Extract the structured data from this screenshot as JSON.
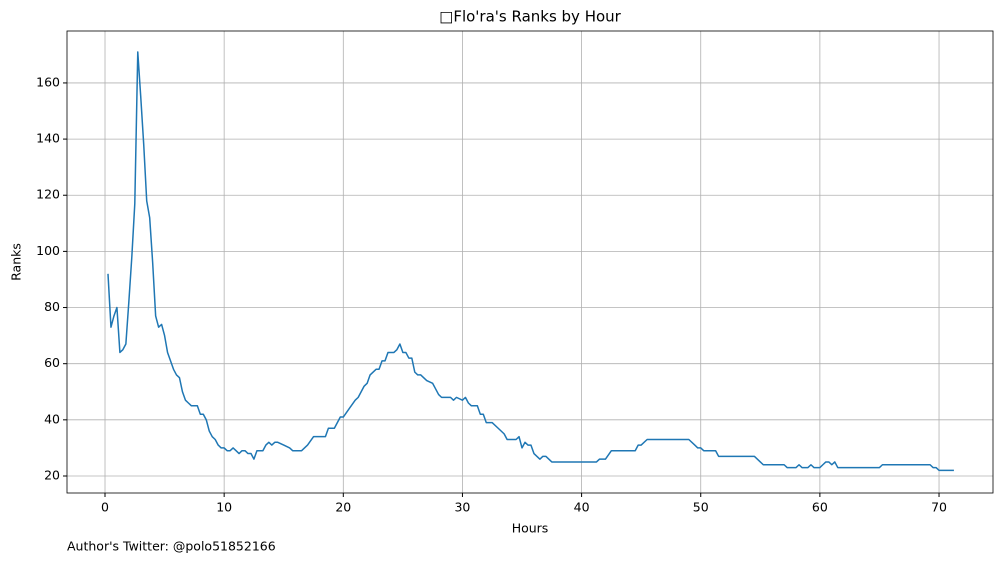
{
  "chart_data": {
    "type": "line",
    "title": "□Flo'ra's Ranks by Hour",
    "xlabel": "Hours",
    "ylabel": "Ranks",
    "annotation": "Author's Twitter: @polo51852166",
    "grid": true,
    "xlim": [
      -3.19,
      74.53
    ],
    "ylim": [
      13.94,
      178.5
    ],
    "xticks": [
      0,
      10,
      20,
      30,
      40,
      50,
      60,
      70
    ],
    "yticks": [
      20,
      40,
      60,
      80,
      100,
      120,
      140,
      160
    ],
    "x": [
      0.25,
      0.5,
      0.75,
      1.0,
      1.25,
      1.5,
      1.75,
      2.0,
      2.25,
      2.5,
      2.75,
      3.0,
      3.25,
      3.5,
      3.75,
      4.0,
      4.25,
      4.5,
      4.75,
      5.0,
      5.25,
      5.5,
      5.75,
      6.0,
      6.25,
      6.5,
      6.75,
      7.0,
      7.25,
      7.5,
      7.75,
      8.0,
      8.25,
      8.5,
      8.75,
      9.0,
      9.25,
      9.5,
      9.75,
      10.0,
      10.25,
      10.5,
      10.75,
      11.0,
      11.25,
      11.5,
      11.75,
      12.0,
      12.25,
      12.5,
      12.75,
      13.0,
      13.25,
      13.5,
      13.75,
      14.0,
      14.25,
      14.5,
      15.0,
      15.5,
      15.75,
      16.5,
      17.0,
      17.5,
      18.5,
      18.75,
      19.25,
      19.75,
      20.0,
      20.5,
      21.0,
      21.25,
      21.75,
      22.0,
      22.25,
      22.75,
      23.0,
      23.25,
      23.5,
      23.75,
      24.25,
      24.5,
      24.75,
      25.0,
      25.25,
      25.5,
      25.75,
      26.0,
      26.25,
      26.5,
      27.0,
      27.5,
      27.75,
      28.0,
      28.25,
      29.0,
      29.25,
      29.5,
      30.0,
      30.25,
      30.5,
      30.75,
      31.25,
      31.5,
      31.75,
      32.0,
      32.5,
      33.0,
      33.5,
      33.75,
      34.5,
      34.75,
      35.0,
      35.25,
      35.5,
      35.75,
      36.0,
      36.5,
      36.75,
      37.0,
      37.5,
      41.25,
      41.5,
      42.0,
      42.5,
      44.5,
      44.75,
      45.0,
      45.5,
      49.0,
      49.5,
      49.75,
      50.0,
      50.25,
      51.25,
      51.5,
      54.5,
      55.0,
      55.25,
      57.0,
      57.25,
      58.0,
      58.25,
      58.5,
      59.0,
      59.25,
      59.5,
      60.0,
      60.25,
      60.5,
      60.75,
      61.0,
      61.25,
      61.5,
      65.0,
      65.25,
      69.25,
      69.5,
      69.75,
      70.0,
      71.25
    ],
    "series": [
      {
        "name": "Ranks",
        "color": "#1f77b4",
        "values": [
          92,
          73,
          77,
          80,
          64,
          65,
          67,
          82,
          98,
          117,
          171,
          155,
          138,
          118,
          112,
          96,
          77,
          73,
          74,
          70,
          64,
          61,
          58,
          56,
          55,
          50,
          47,
          46,
          45,
          45,
          45,
          42,
          42,
          40,
          36,
          34,
          33,
          31,
          30,
          30,
          29,
          29,
          30,
          29,
          28,
          29,
          29,
          28,
          28,
          26,
          29,
          29,
          29,
          31,
          32,
          31,
          32,
          32,
          31,
          30,
          29,
          29,
          31,
          34,
          34,
          37,
          37,
          41,
          41,
          44,
          47,
          48,
          52,
          53,
          56,
          58,
          58,
          61,
          61,
          64,
          64,
          65,
          67,
          64,
          64,
          62,
          62,
          57,
          56,
          56,
          54,
          53,
          51,
          49,
          48,
          48,
          47,
          48,
          47,
          48,
          46,
          45,
          45,
          42,
          42,
          39,
          39,
          37,
          35,
          33,
          33,
          34,
          30,
          32,
          31,
          31,
          28,
          26,
          27,
          27,
          25,
          25,
          26,
          26,
          29,
          29,
          31,
          31,
          33,
          33,
          31,
          30,
          30,
          29,
          29,
          27,
          27,
          25,
          24,
          24,
          23,
          23,
          24,
          23,
          23,
          24,
          23,
          23,
          24,
          25,
          25,
          24,
          25,
          23,
          23,
          24,
          24,
          23,
          23,
          22,
          22
        ]
      }
    ]
  }
}
